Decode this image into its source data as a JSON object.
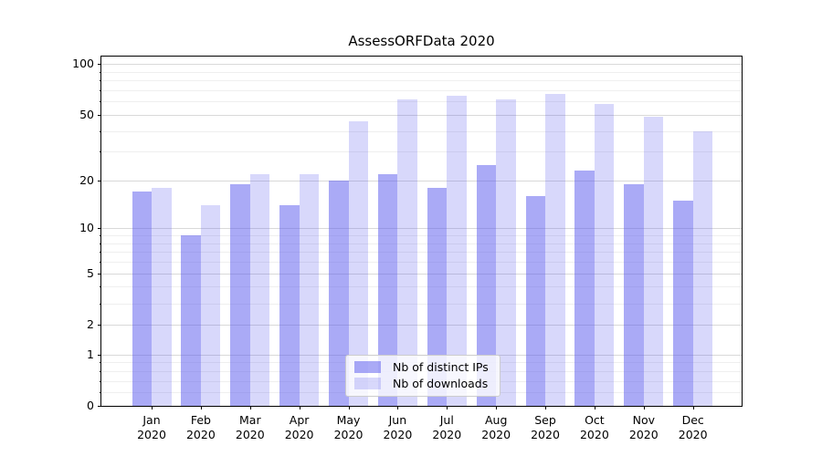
{
  "chart_data": {
    "type": "bar",
    "title": "AssessORFData 2020",
    "categories": [
      "Jan",
      "Feb",
      "Mar",
      "Apr",
      "May",
      "Jun",
      "Jul",
      "Aug",
      "Sep",
      "Oct",
      "Nov",
      "Dec"
    ],
    "category_year": "2020",
    "series": [
      {
        "name": "Nb of distinct IPs",
        "color": "#5555ee",
        "alpha": 0.5,
        "values": [
          17,
          9,
          19,
          14,
          20,
          22,
          18,
          25,
          16,
          23,
          19,
          15
        ]
      },
      {
        "name": "Nb of downloads",
        "color": "#5555ee",
        "alpha": 0.23,
        "values": [
          18,
          14,
          22,
          22,
          46,
          62,
          65,
          62,
          67,
          58,
          49,
          40
        ]
      }
    ],
    "xlabel": "",
    "ylabel": "",
    "y_axis": {
      "scale": "log10(1+value)",
      "major_ticks": [
        0,
        1,
        2,
        5,
        10,
        20,
        50,
        100
      ],
      "minor_ticks": [
        0.2,
        0.4,
        0.6,
        0.8,
        3,
        4,
        6,
        7,
        8,
        9,
        30,
        40,
        60,
        70,
        80,
        90
      ],
      "range": [
        0,
        109
      ]
    },
    "grid": true,
    "legend_position": "lower center"
  },
  "colors": {
    "spine": "#000000",
    "grid_major": "#d9d9d9",
    "grid_minor": "#efefef",
    "legend_border": "#cccccc",
    "text": "#000000"
  }
}
